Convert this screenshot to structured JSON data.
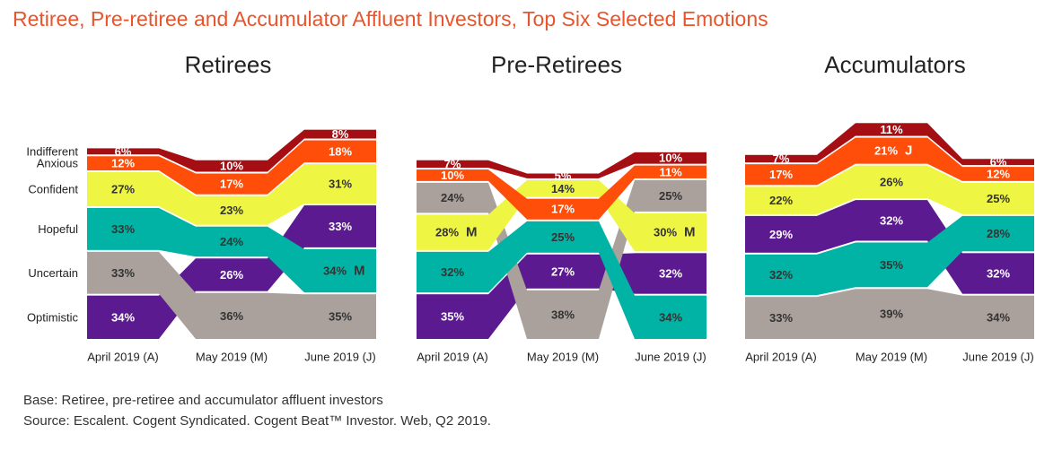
{
  "title": "Retiree, Pre-retiree and Accumulator Affluent Investors, Top Six Selected Emotions",
  "footnotes": {
    "base": "Base: Retiree, pre-retiree and accumulator affluent investors",
    "source": "Source: Escalent. Cogent Syndicated. Cogent Beat™ Investor. Web, Q2 2019."
  },
  "colors": {
    "Optimistic": "#5b1a8f",
    "Uncertain": "#aaa19d",
    "Hopeful": "#00b3a4",
    "Confident": "#eef542",
    "Anxious": "#ff4d0a",
    "Indifferent": "#a50f14",
    "label_dark": "#333333",
    "label_light": "#ffffff"
  },
  "chart_data": {
    "type": "ribbon-stacked-bar",
    "categories": [
      "April 2019 (A)",
      "May 2019 (M)",
      "June 2019 (J)"
    ],
    "emotions": [
      "Optimistic",
      "Uncertain",
      "Hopeful",
      "Confident",
      "Anxious",
      "Indifferent"
    ],
    "panels": [
      {
        "title": "Retirees",
        "show_row_labels": true,
        "values": {
          "Optimistic": [
            34,
            26,
            33
          ],
          "Uncertain": [
            33,
            36,
            35
          ],
          "Hopeful": [
            33,
            24,
            34
          ],
          "Confident": [
            27,
            23,
            31
          ],
          "Anxious": [
            12,
            17,
            18
          ],
          "Indifferent": [
            6,
            10,
            8
          ]
        },
        "annotations": [
          {
            "emotion": "Hopeful",
            "period": 2,
            "text": "M"
          }
        ]
      },
      {
        "title": "Pre-Retirees",
        "show_row_labels": false,
        "values": {
          "Optimistic": [
            35,
            27,
            32
          ],
          "Uncertain": [
            24,
            38,
            25
          ],
          "Hopeful": [
            32,
            25,
            34
          ],
          "Confident": [
            28,
            14,
            30
          ],
          "Anxious": [
            10,
            17,
            11
          ],
          "Indifferent": [
            7,
            5,
            10
          ]
        },
        "annotations": [
          {
            "emotion": "Confident",
            "period": 0,
            "text": "M"
          },
          {
            "emotion": "Confident",
            "period": 2,
            "text": "M"
          }
        ]
      },
      {
        "title": "Accumulators",
        "show_row_labels": false,
        "values": {
          "Optimistic": [
            29,
            32,
            32
          ],
          "Uncertain": [
            33,
            39,
            34
          ],
          "Hopeful": [
            32,
            35,
            28
          ],
          "Confident": [
            22,
            26,
            25
          ],
          "Anxious": [
            17,
            21,
            12
          ],
          "Indifferent": [
            7,
            11,
            6
          ]
        },
        "annotations": [
          {
            "emotion": "Anxious",
            "period": 1,
            "text": "J"
          }
        ]
      }
    ]
  }
}
